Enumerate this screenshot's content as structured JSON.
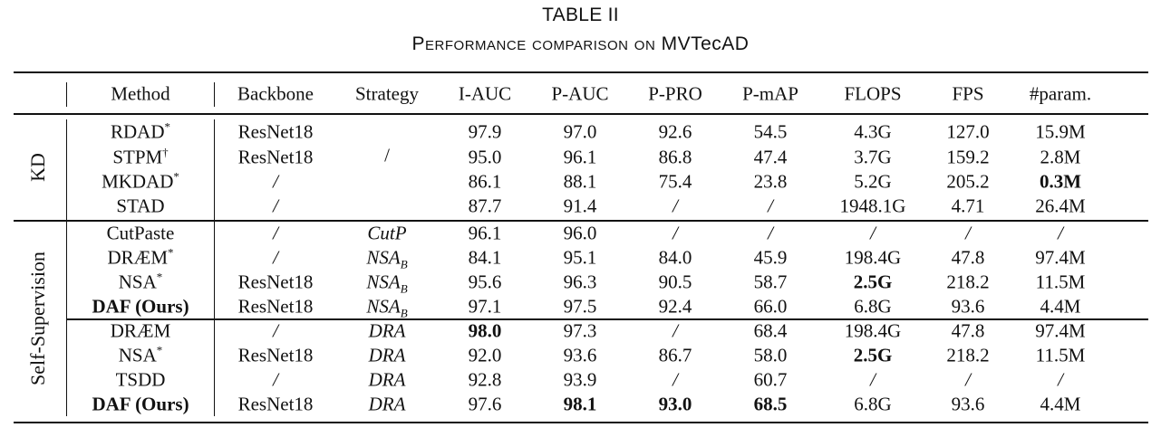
{
  "caption": {
    "number": "TABLE II",
    "title_prefix": "Performance comparison on ",
    "title_dataset": "MVTecAD"
  },
  "headers": [
    "Method",
    "Backbone",
    "Strategy",
    "I-AUC",
    "P-AUC",
    "P-PRO",
    "P-mAP",
    "FLOPS",
    "FPS",
    "#param."
  ],
  "groups": [
    {
      "label": "KD"
    },
    {
      "label": "Self-Supervision"
    }
  ],
  "kd": {
    "strategy": "/",
    "rows": [
      {
        "method": "RDAD",
        "mark": "*",
        "backbone": "ResNet18",
        "iauc": "97.9",
        "pauc": "97.0",
        "ppro": "92.6",
        "pmap": "54.5",
        "flops": "4.3G",
        "fps": "127.0",
        "param": "15.9M"
      },
      {
        "method": "STPM",
        "mark": "†",
        "backbone": "ResNet18",
        "iauc": "95.0",
        "pauc": "96.1",
        "ppro": "86.8",
        "pmap": "47.4",
        "flops": "3.7G",
        "fps": "159.2",
        "param": "2.8M"
      },
      {
        "method": "MKDAD",
        "mark": "*",
        "backbone": "/",
        "iauc": "86.1",
        "pauc": "88.1",
        "ppro": "75.4",
        "pmap": "23.8",
        "flops": "5.2G",
        "fps": "205.2",
        "param": "0.3M"
      },
      {
        "method": "STAD",
        "mark": "",
        "backbone": "/",
        "iauc": "87.7",
        "pauc": "91.4",
        "ppro": "/",
        "pmap": "/",
        "flops": "1948.1G",
        "fps": "4.71",
        "param": "26.4M"
      }
    ]
  },
  "ss1": {
    "rows": [
      {
        "method": "CutPaste",
        "mark": "",
        "backbone": "/",
        "strategy": "CutP",
        "sub": "",
        "iauc": "96.1",
        "pauc": "96.0",
        "ppro": "/",
        "pmap": "/",
        "flops": "/",
        "fps": "/",
        "param": "/"
      },
      {
        "method": "DRÆM",
        "mark": "*",
        "backbone": "/",
        "strategy": "NSA",
        "sub": "B",
        "iauc": "84.1",
        "pauc": "95.1",
        "ppro": "84.0",
        "pmap": "45.9",
        "flops": "198.4G",
        "fps": "47.8",
        "param": "97.4M"
      },
      {
        "method": "NSA",
        "mark": "*",
        "backbone": "ResNet18",
        "strategy": "NSA",
        "sub": "B",
        "iauc": "95.6",
        "pauc": "96.3",
        "ppro": "90.5",
        "pmap": "58.7",
        "flops": "2.5G",
        "fps": "218.2",
        "param": "11.5M"
      },
      {
        "method": "DAF (Ours)",
        "mark": "",
        "backbone": "ResNet18",
        "strategy": "NSA",
        "sub": "B",
        "iauc": "97.1",
        "pauc": "97.5",
        "ppro": "92.4",
        "pmap": "66.0",
        "flops": "6.8G",
        "fps": "93.6",
        "param": "4.4M"
      }
    ]
  },
  "ss2": {
    "rows": [
      {
        "method": "DRÆM",
        "mark": "",
        "backbone": "/",
        "strategy": "DRA",
        "iauc": "98.0",
        "pauc": "97.3",
        "ppro": "/",
        "pmap": "68.4",
        "flops": "198.4G",
        "fps": "47.8",
        "param": "97.4M"
      },
      {
        "method": "NSA",
        "mark": "*",
        "backbone": "ResNet18",
        "strategy": "DRA",
        "iauc": "92.0",
        "pauc": "93.6",
        "ppro": "86.7",
        "pmap": "58.0",
        "flops": "2.5G",
        "fps": "218.2",
        "param": "11.5M"
      },
      {
        "method": "TSDD",
        "mark": "",
        "backbone": "/",
        "strategy": "DRA",
        "iauc": "92.8",
        "pauc": "93.9",
        "ppro": "/",
        "pmap": "60.7",
        "flops": "/",
        "fps": "/",
        "param": "/"
      },
      {
        "method": "DAF (Ours)",
        "mark": "",
        "backbone": "ResNet18",
        "strategy": "DRA",
        "iauc": "97.6",
        "pauc": "98.1",
        "ppro": "93.0",
        "pmap": "68.5",
        "flops": "6.8G",
        "fps": "93.6",
        "param": "4.4M"
      }
    ]
  }
}
